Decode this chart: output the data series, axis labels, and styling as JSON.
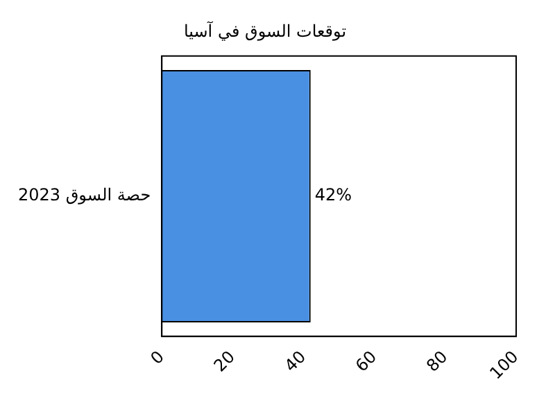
{
  "chart_data": {
    "type": "bar",
    "orientation": "horizontal",
    "title": "توقعات السوق في آسيا",
    "categories": [
      "حصة السوق 2023"
    ],
    "values": [
      42
    ],
    "value_labels": [
      "42%"
    ],
    "color": "#4a90e2",
    "xlim": [
      0,
      100
    ],
    "xticks": [
      0,
      20,
      40,
      60,
      80,
      100
    ],
    "grid": false,
    "legend": false
  }
}
